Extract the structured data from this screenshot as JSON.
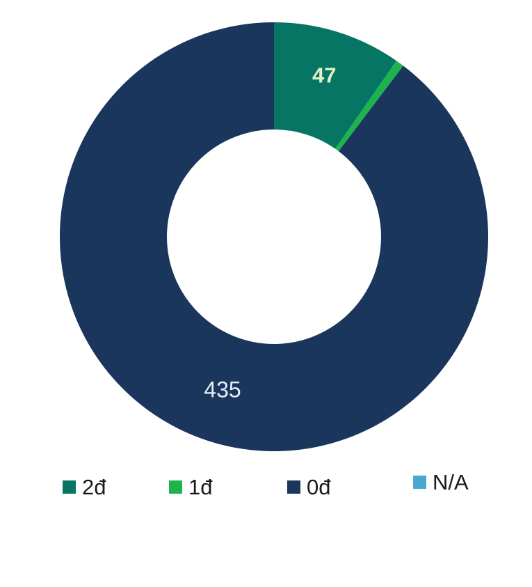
{
  "chart_data": {
    "type": "pie",
    "variant": "donut",
    "categories": [
      "2đ",
      "1đ",
      "0đ",
      "N/A"
    ],
    "values": [
      47,
      3,
      435,
      0
    ],
    "colors": [
      "#077563",
      "#1db44e",
      "#1a365c",
      "#4aa8d0"
    ],
    "data_labels": [
      "47",
      "",
      "435",
      ""
    ],
    "data_label_colors": [
      "#e4f0c8",
      "#ffffff",
      "#e8eef6",
      "#ffffff"
    ],
    "start_angle_deg": 0,
    "direction": "clockwise",
    "legend": {
      "position": "bottom",
      "entries": [
        "2đ",
        "1đ",
        "0đ",
        "N/A"
      ]
    }
  }
}
